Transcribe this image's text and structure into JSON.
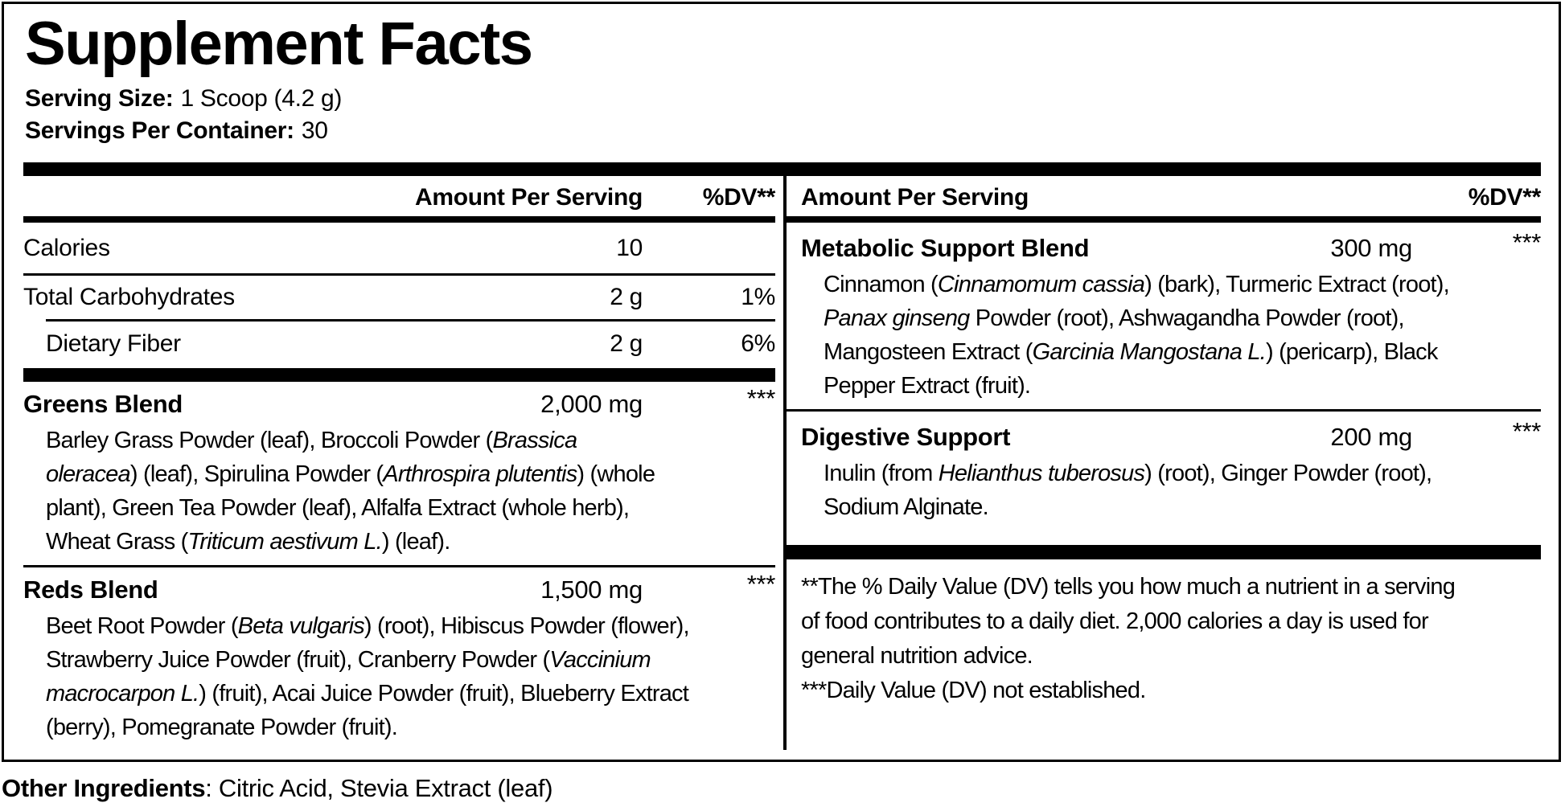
{
  "title": "Supplement Facts",
  "serving": {
    "size_label": "Serving Size:",
    "size_value": "1 Scoop (4.2 g)",
    "per_container_label": "Servings Per Container:",
    "per_container_value": "30"
  },
  "columns": {
    "left": {
      "header": {
        "amount": "Amount Per Serving",
        "dv": "%DV**"
      },
      "rows": [
        {
          "name": "Calories",
          "amount": "10",
          "dv": ""
        },
        {
          "name": "Total Carbohydrates",
          "amount": "2 g",
          "dv": "1%"
        },
        {
          "name": "Dietary Fiber",
          "amount": "2 g",
          "dv": "6%"
        }
      ],
      "blends": [
        {
          "name": "Greens Blend",
          "amount": "2,000 mg",
          "dv": "***",
          "ingredient_lines": [
            [
              {
                "t": "Barley Grass Powder (leaf), Broccoli Powder ("
              },
              {
                "t": "Brassica",
                "i": true
              }
            ],
            [
              {
                "t": "oleracea",
                "i": true
              },
              {
                "t": ") (leaf), Spirulina Powder ("
              },
              {
                "t": "Arthrospira plutentis",
                "i": true
              },
              {
                "t": ") (whole"
              }
            ],
            [
              {
                "t": "plant), Green Tea Powder (leaf), Alfalfa Extract (whole herb),"
              }
            ],
            [
              {
                "t": "Wheat Grass ("
              },
              {
                "t": "Triticum aestivum L.",
                "i": true
              },
              {
                "t": ") (leaf)."
              }
            ]
          ]
        },
        {
          "name": "Reds Blend",
          "amount": "1,500 mg",
          "dv": "***",
          "ingredient_lines": [
            [
              {
                "t": "Beet Root Powder ("
              },
              {
                "t": "Beta vulgaris",
                "i": true
              },
              {
                "t": ") (root), Hibiscus Powder (flower),"
              }
            ],
            [
              {
                "t": "Strawberry Juice Powder (fruit), Cranberry Powder ("
              },
              {
                "t": "Vaccinium",
                "i": true
              }
            ],
            [
              {
                "t": "macrocarpon L.",
                "i": true
              },
              {
                "t": ") (fruit), Acai Juice Powder (fruit), Blueberry Extract"
              }
            ],
            [
              {
                "t": "(berry), Pomegranate Powder (fruit)."
              }
            ]
          ]
        }
      ]
    },
    "right": {
      "header": {
        "amount": "Amount Per Serving",
        "dv": "%DV**"
      },
      "blends": [
        {
          "name": "Metabolic Support Blend",
          "amount": "300 mg",
          "dv": "***",
          "ingredient_lines": [
            [
              {
                "t": "Cinnamon ("
              },
              {
                "t": "Cinnamomum cassia",
                "i": true
              },
              {
                "t": ") (bark), Turmeric Extract (root),"
              }
            ],
            [
              {
                "t": "Panax ginseng",
                "i": true
              },
              {
                "t": " Powder (root), Ashwagandha Powder (root),"
              }
            ],
            [
              {
                "t": "Mangosteen Extract ("
              },
              {
                "t": "Garcinia Mangostana L.",
                "i": true
              },
              {
                "t": ") (pericarp), Black"
              }
            ],
            [
              {
                "t": "Pepper Extract (fruit)."
              }
            ]
          ]
        },
        {
          "name": "Digestive Support",
          "amount": "200 mg",
          "dv": "***",
          "ingredient_lines": [
            [
              {
                "t": "Inulin (from "
              },
              {
                "t": "Helianthus tuberosus",
                "i": true
              },
              {
                "t": ") (root), Ginger Powder (root),"
              }
            ],
            [
              {
                "t": "Sodium Alginate."
              }
            ]
          ]
        }
      ],
      "footnote_lines": [
        "**The % Daily Value (DV) tells you how much a nutrient in a serving",
        "of food contributes to a daily diet. 2,000 calories a day is used for",
        "general nutrition advice.",
        "***Daily Value (DV) not established."
      ]
    }
  },
  "other_ingredients": {
    "label": "Other Ingredients",
    "value": ": Citric Acid, Stevia Extract (leaf)"
  },
  "colors": {
    "ink": "#000000",
    "background": "#ffffff"
  }
}
